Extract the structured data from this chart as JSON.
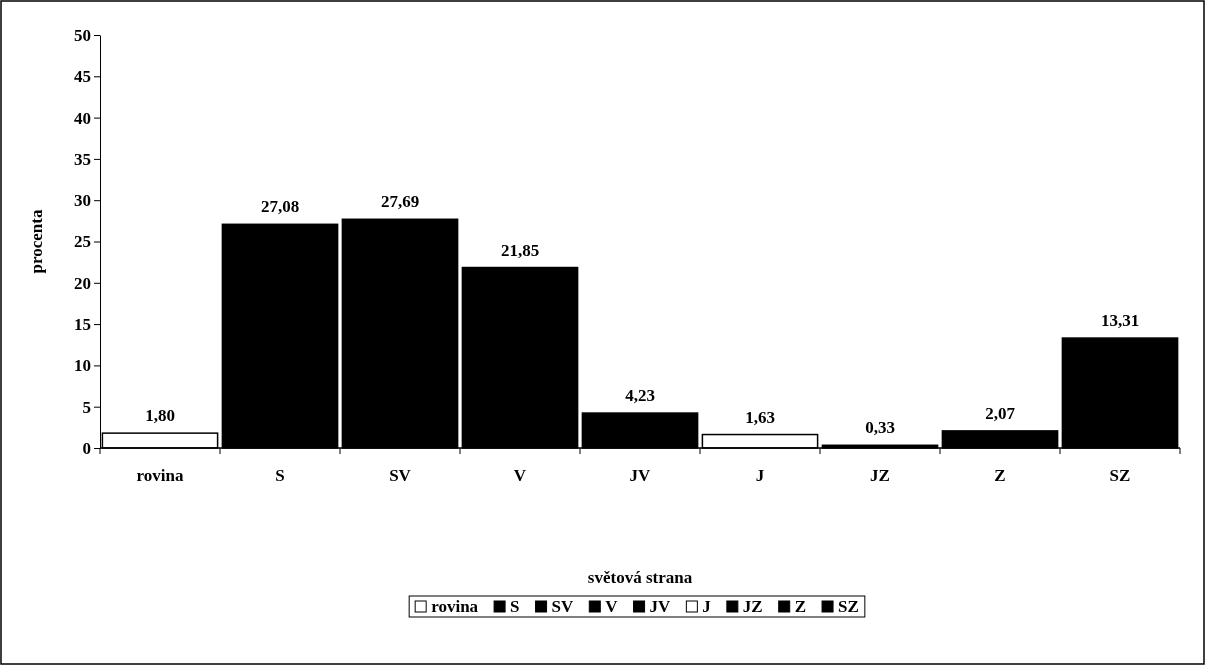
{
  "chart_data": {
    "type": "bar",
    "xlabel": "světová strana",
    "ylabel": "procenta",
    "categories": [
      "rovina",
      "S",
      "SV",
      "V",
      "JV",
      "J",
      "JZ",
      "Z",
      "SZ"
    ],
    "stacked": true,
    "series": [
      {
        "name": "rovina",
        "color": "#ffffff",
        "values": [
          1.8,
          null,
          null,
          null,
          null,
          null,
          null,
          null,
          null
        ],
        "value_labels": [
          "1,80",
          null,
          null,
          null,
          null,
          null,
          null,
          null,
          null
        ]
      },
      {
        "name": "S",
        "color": "#000000",
        "values": [
          null,
          27.08,
          null,
          null,
          null,
          null,
          null,
          null,
          null
        ],
        "value_labels": [
          null,
          "27,08",
          null,
          null,
          null,
          null,
          null,
          null,
          null
        ]
      },
      {
        "name": "SV",
        "color": "#000000",
        "values": [
          null,
          null,
          27.69,
          null,
          null,
          null,
          null,
          null,
          null
        ],
        "value_labels": [
          null,
          null,
          "27,69",
          null,
          null,
          null,
          null,
          null,
          null
        ]
      },
      {
        "name": "V",
        "color": "#000000",
        "values": [
          null,
          null,
          null,
          21.85,
          null,
          null,
          null,
          null,
          null
        ],
        "value_labels": [
          null,
          null,
          null,
          "21,85",
          null,
          null,
          null,
          null,
          null
        ]
      },
      {
        "name": "JV",
        "color": "#000000",
        "values": [
          null,
          null,
          null,
          null,
          4.23,
          null,
          null,
          null,
          null
        ],
        "value_labels": [
          null,
          null,
          null,
          null,
          "4,23",
          null,
          null,
          null,
          null
        ]
      },
      {
        "name": "J",
        "color": "#ffffff",
        "values": [
          null,
          null,
          null,
          null,
          null,
          1.63,
          null,
          null,
          null
        ],
        "value_labels": [
          null,
          null,
          null,
          null,
          null,
          "1,63",
          null,
          null,
          null
        ]
      },
      {
        "name": "JZ",
        "color": "#000000",
        "values": [
          null,
          null,
          null,
          null,
          null,
          null,
          0.33,
          null,
          null
        ],
        "value_labels": [
          null,
          null,
          null,
          null,
          null,
          null,
          "0,33",
          null,
          null
        ]
      },
      {
        "name": "Z",
        "color": "#000000",
        "values": [
          null,
          null,
          null,
          null,
          null,
          null,
          null,
          2.07,
          null
        ],
        "value_labels": [
          null,
          null,
          null,
          null,
          null,
          null,
          null,
          "2,07",
          null
        ]
      },
      {
        "name": "SZ",
        "color": "#000000",
        "values": [
          null,
          null,
          null,
          null,
          null,
          null,
          null,
          null,
          13.31
        ],
        "value_labels": [
          null,
          null,
          null,
          null,
          null,
          null,
          null,
          null,
          "13,31"
        ]
      }
    ],
    "ylim": [
      0,
      50
    ],
    "yticks": [
      0,
      5,
      10,
      15,
      20,
      25,
      30,
      35,
      40,
      45,
      50
    ],
    "legend": "bottom"
  }
}
